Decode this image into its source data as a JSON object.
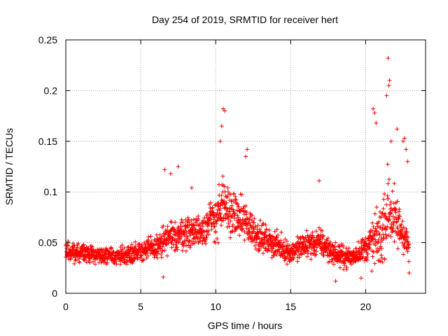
{
  "chart_data": {
    "type": "scatter",
    "title": "Day 254 of 2019, SRMTID for receiver hert",
    "xlabel": "GPS time / hours",
    "ylabel": "SRMTID / TECUs",
    "xlim": [
      0,
      24
    ],
    "ylim": [
      0,
      0.25
    ],
    "x_ticks": [
      0,
      5,
      10,
      15,
      20
    ],
    "x_tick_labels": [
      "0",
      "5",
      "10",
      "15",
      "20"
    ],
    "y_ticks": [
      0,
      0.05,
      0.1,
      0.15,
      0.2,
      0.25
    ],
    "y_tick_labels": [
      "0",
      "0.05",
      "0.1",
      "0.15",
      "0.2",
      "0.25"
    ],
    "grid": true,
    "marker": "+",
    "marker_color": "#ff0000",
    "series": [
      {
        "name": "SRMTID",
        "envelope": {
          "hours": [
            0,
            1,
            2,
            3,
            4,
            5,
            6,
            6.5,
            7,
            8,
            9,
            10,
            10.5,
            11,
            12,
            13,
            14,
            15,
            16,
            17,
            18,
            19,
            20,
            20.5,
            21,
            21.5,
            22,
            22.5,
            22.9
          ],
          "median": [
            0.04,
            0.04,
            0.038,
            0.036,
            0.038,
            0.042,
            0.045,
            0.05,
            0.055,
            0.06,
            0.062,
            0.075,
            0.085,
            0.08,
            0.07,
            0.055,
            0.048,
            0.04,
            0.048,
            0.05,
            0.038,
            0.035,
            0.045,
            0.05,
            0.055,
            0.085,
            0.07,
            0.06,
            0.045
          ],
          "spread": [
            0.013,
            0.013,
            0.013,
            0.012,
            0.013,
            0.015,
            0.016,
            0.022,
            0.022,
            0.022,
            0.022,
            0.035,
            0.04,
            0.03,
            0.03,
            0.02,
            0.018,
            0.015,
            0.02,
            0.02,
            0.015,
            0.014,
            0.018,
            0.04,
            0.04,
            0.06,
            0.04,
            0.03,
            0.018
          ]
        },
        "notable_points": [
          {
            "x": 10.5,
            "y": 0.182
          },
          {
            "x": 10.6,
            "y": 0.18
          },
          {
            "x": 10.4,
            "y": 0.165
          },
          {
            "x": 10.3,
            "y": 0.15
          },
          {
            "x": 12.1,
            "y": 0.142
          },
          {
            "x": 12.0,
            "y": 0.135
          },
          {
            "x": 6.6,
            "y": 0.122
          },
          {
            "x": 7.5,
            "y": 0.125
          },
          {
            "x": 7.0,
            "y": 0.118
          },
          {
            "x": 8.4,
            "y": 0.104
          },
          {
            "x": 16.9,
            "y": 0.111
          },
          {
            "x": 20.5,
            "y": 0.182
          },
          {
            "x": 20.6,
            "y": 0.178
          },
          {
            "x": 20.7,
            "y": 0.168
          },
          {
            "x": 21.5,
            "y": 0.232
          },
          {
            "x": 21.6,
            "y": 0.21
          },
          {
            "x": 21.55,
            "y": 0.205
          },
          {
            "x": 21.4,
            "y": 0.195
          },
          {
            "x": 21.7,
            "y": 0.15
          },
          {
            "x": 22.1,
            "y": 0.162
          },
          {
            "x": 22.6,
            "y": 0.153
          },
          {
            "x": 22.5,
            "y": 0.15
          },
          {
            "x": 22.7,
            "y": 0.142
          },
          {
            "x": 22.8,
            "y": 0.13
          },
          {
            "x": 18.0,
            "y": 0.012
          },
          {
            "x": 19.7,
            "y": 0.015
          },
          {
            "x": 6.5,
            "y": 0.016
          },
          {
            "x": 22.9,
            "y": 0.02
          }
        ]
      }
    ]
  }
}
